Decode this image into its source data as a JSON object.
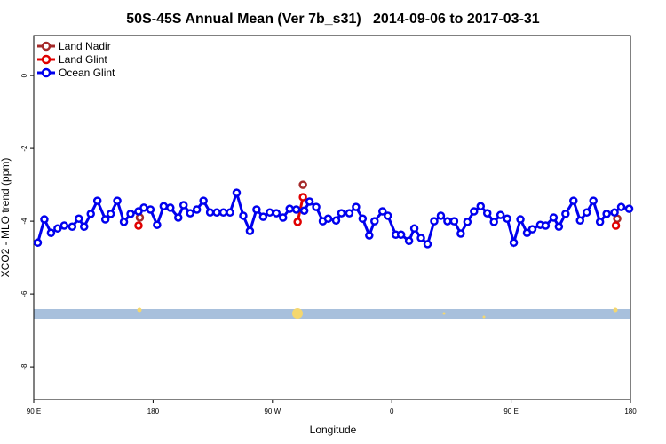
{
  "chart_data": {
    "type": "line",
    "title": "50S-45S Annual Mean (Ver 7b_s31)   2014-09-06 to 2017-03-31",
    "x_label": "Longitude",
    "y_label": "XCO2 - MLO trend (ppm)",
    "xlim": [
      90,
      540
    ],
    "ylim": [
      -8.9,
      1.1
    ],
    "xticks": [
      {
        "value": 90,
        "label": "90 E"
      },
      180,
      {
        "value": 270,
        "label": "90 W"
      },
      {
        "value": 360,
        "label": "0"
      },
      {
        "value": 450,
        "label": "90 E"
      },
      {
        "value": 540,
        "label": "180"
      }
    ],
    "yticks": [
      0,
      -2,
      -4,
      -6,
      -8
    ],
    "legend": "top-left",
    "series": [
      {
        "name": "Land Nadir",
        "color": "#a52a2a",
        "x": [
          170,
          293,
          530
        ],
        "values": [
          -3.9,
          -3.0,
          -3.93
        ]
      },
      {
        "name": "Land Glint",
        "color": "#e00000",
        "x": [
          169,
          289,
          293,
          529
        ],
        "values": [
          -4.12,
          -4.02,
          -3.34,
          -4.12
        ]
      },
      {
        "name": "Ocean Glint",
        "color": "#0000ee",
        "x": [
          93,
          98,
          103,
          108,
          113,
          119,
          124,
          128,
          133,
          138,
          144,
          148,
          153,
          158,
          163,
          169,
          173,
          178,
          183,
          188,
          193,
          199,
          203,
          208,
          213,
          218,
          223,
          228,
          233,
          238,
          243,
          248,
          253,
          258,
          263,
          268,
          273,
          278,
          283,
          288,
          294,
          298,
          303,
          308,
          312,
          318,
          322,
          328,
          333,
          338,
          343,
          347,
          353,
          357,
          363,
          367,
          373,
          377,
          382,
          387,
          392,
          397,
          402,
          407,
          412,
          417,
          422,
          427,
          432,
          437,
          442,
          447,
          452,
          457,
          462,
          466,
          472,
          476,
          482,
          486,
          491,
          497,
          502,
          507,
          512,
          517,
          522,
          528,
          533,
          539
        ],
        "values": [
          -4.59,
          -3.95,
          -4.32,
          -4.2,
          -4.12,
          -4.15,
          -3.93,
          -4.15,
          -3.8,
          -3.44,
          -3.95,
          -3.8,
          -3.44,
          -4.02,
          -3.8,
          -3.73,
          -3.63,
          -3.68,
          -4.1,
          -3.59,
          -3.63,
          -3.9,
          -3.56,
          -3.78,
          -3.68,
          -3.44,
          -3.76,
          -3.76,
          -3.76,
          -3.76,
          -3.22,
          -3.85,
          -4.27,
          -3.68,
          -3.88,
          -3.76,
          -3.78,
          -3.9,
          -3.66,
          -3.68,
          -3.71,
          -3.46,
          -3.61,
          -4.0,
          -3.93,
          -3.98,
          -3.78,
          -3.78,
          -3.61,
          -3.93,
          -4.39,
          -4.0,
          -3.73,
          -3.85,
          -4.37,
          -4.37,
          -4.54,
          -4.2,
          -4.46,
          -4.63,
          -4.0,
          -3.85,
          -4.0,
          -4.0,
          -4.34,
          -4.02,
          -3.73,
          -3.59,
          -3.78,
          -4.02,
          -3.83,
          -3.93,
          -4.59,
          -3.95,
          -4.32,
          -4.22,
          -4.1,
          -4.12,
          -3.9,
          -4.15,
          -3.8,
          -3.44,
          -3.98,
          -3.76,
          -3.44,
          -4.02,
          -3.8,
          -3.76,
          -3.61,
          -3.66
        ]
      }
    ]
  }
}
